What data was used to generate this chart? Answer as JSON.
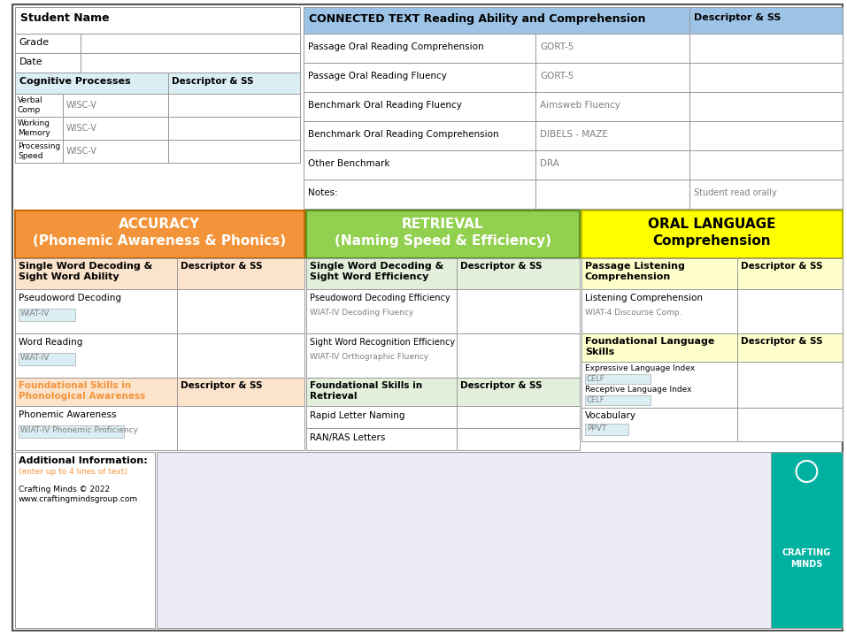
{
  "bg_color": "#ffffff",
  "border_color": "#999999",
  "light_blue_header": "#9dc3e6",
  "light_blue_cell": "#daeef3",
  "orange_header": "#f4943a",
  "orange_light": "#fce4cc",
  "green_header": "#92d050",
  "green_light": "#e2efda",
  "yellow_header": "#ffff00",
  "yellow_light": "#ffffcc",
  "teal_logo": "#00b0a0",
  "gray_text": "#7f7f7f",
  "dark_text": "#000000",
  "orange_text": "#f4943a",
  "blue_link": "#4472c4",
  "student_name_label": "Student Name",
  "grade_label": "Grade",
  "date_label": "Date",
  "cog_proc_label": "Cognitive Processes",
  "desc_ss_label": "Descriptor & SS",
  "cog_rows": [
    {
      "label": "Verbal\nComp",
      "sub": "WISC-V"
    },
    {
      "label": "Working\nMemory",
      "sub": "WISC-V"
    },
    {
      "label": "Processing\nSpeed",
      "sub": "WISC-V"
    }
  ],
  "connected_text_header": "CONNECTED TEXT Reading Ability and Comprehension",
  "connected_rows": [
    {
      "label": "Passage Oral Reading Comprehension",
      "sub": "GORT-5"
    },
    {
      "label": "Passage Oral Reading Fluency",
      "sub": "GORT-5"
    },
    {
      "label": "Benchmark Oral Reading Fluency",
      "sub": "Aimsweb Fluency"
    },
    {
      "label": "Benchmark Oral Reading Comprehension",
      "sub": "DIBELS - MAZE"
    },
    {
      "label": "Other Benchmark",
      "sub": "DRA"
    },
    {
      "label": "Notes:",
      "sub": ""
    }
  ],
  "notes_right": "Student read orally",
  "accuracy_header": "ACCURACY\n(Phonemic Awareness & Phonics)",
  "retrieval_header": "RETRIEVAL\n(Naming Speed & Efficiency)",
  "oral_lang_header": "ORAL LANGUAGE\nComprehension",
  "acc_table_header": "Single Word Decoding &\nSight Word Ability",
  "acc_rows": [
    {
      "label": "Pseudoword Decoding",
      "sub": "WIAT-IV"
    },
    {
      "label": "Word Reading",
      "sub": "WIAT-IV"
    }
  ],
  "ret_table_header": "Single Word Decoding &\nSight Word Efficiency",
  "ret_rows": [
    {
      "label": "Pseudoword Decoding Efficiency",
      "sub": "WIAT-IV Decoding Fluency"
    },
    {
      "label": "Sight Word Recognition Efficiency",
      "sub": "WIAT-IV Orthographic Fluency"
    }
  ],
  "oral_table1_header": "Passage Listening\nComprehension",
  "oral_table1_rows": [
    {
      "label": "Listening Comprehension",
      "sub": "WIAT-4 Discourse Comp."
    }
  ],
  "oral_table2_header": "Foundational Language\nSkills",
  "acc_found_header": "Foundational Skills in\nPhonological Awareness",
  "acc_found_rows": [
    {
      "label": "Phonemic Awareness",
      "sub": "WIAT-IV Phonemic Proficiency"
    }
  ],
  "ret_found_header": "Foundational Skills in\nRetrieval",
  "ret_found_rows": [
    {
      "label": "Rapid Letter Naming",
      "sub": ""
    },
    {
      "label": "RAN/RAS Letters",
      "sub": ""
    }
  ],
  "additional_info": "Additional Information:",
  "additional_sub": "(enter up to 4 lines of text)",
  "crafting_minds": "Crafting Minds © 2022\nwww.craftingmindsgroup.com",
  "crafting_logo_text": "CRAFTING\nMINDS"
}
